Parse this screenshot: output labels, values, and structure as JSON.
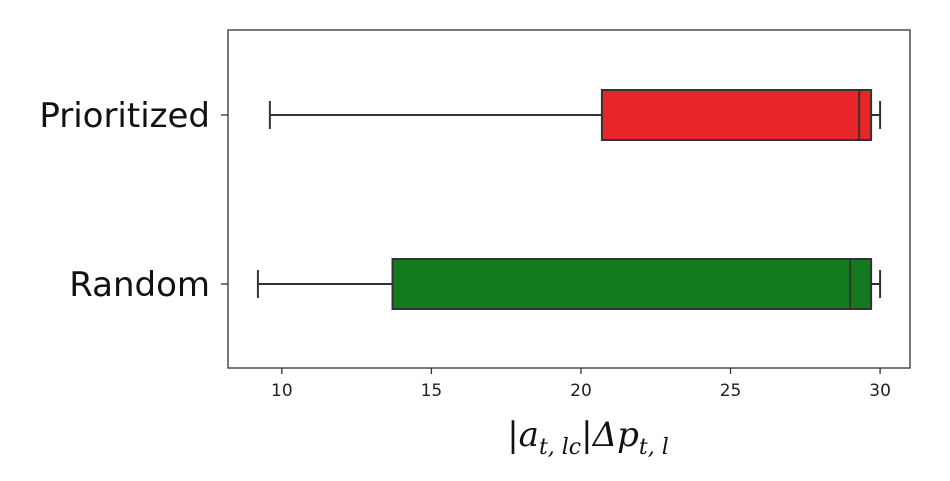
{
  "chart_data": {
    "type": "boxplot",
    "orientation": "horizontal",
    "categories": [
      "Random",
      "Prioritized"
    ],
    "series": [
      {
        "category": "Random",
        "whisker_low": 9.2,
        "q1": 13.7,
        "median": 29.0,
        "q3": 29.7,
        "whisker_high": 30.0,
        "color": "#137a1e"
      },
      {
        "category": "Prioritized",
        "whisker_low": 9.6,
        "q1": 20.7,
        "median": 29.3,
        "q3": 29.7,
        "whisker_high": 30.0,
        "color": "#e8262a"
      }
    ],
    "xticks": [
      10,
      15,
      20,
      25,
      30
    ],
    "xlim": [
      8.2,
      31.0
    ],
    "xlabel": "|a_{t,lc}|Δp_{t,l}",
    "grid": false
  }
}
